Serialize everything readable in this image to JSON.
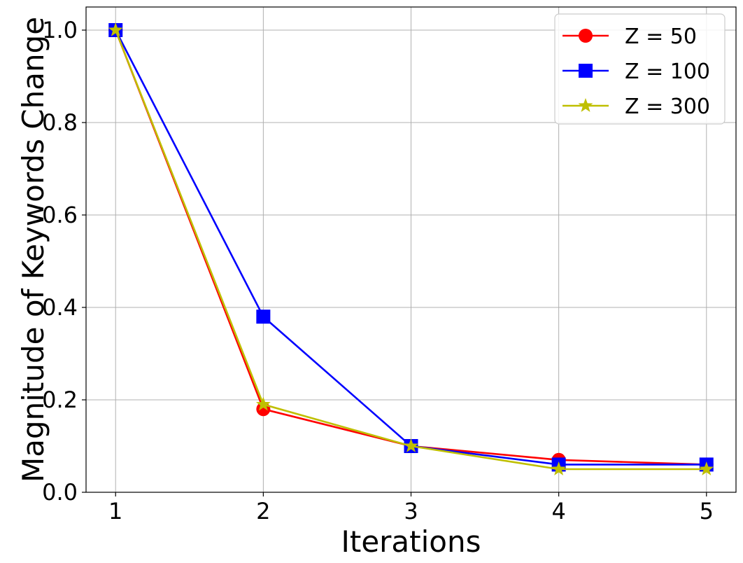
{
  "chart_data": {
    "type": "line",
    "title": "",
    "xlabel": "Iterations",
    "ylabel": "Magnitude of Keywords Change",
    "x": [
      1,
      2,
      3,
      4,
      5
    ],
    "x_ticks": [
      "1",
      "2",
      "3",
      "4",
      "5"
    ],
    "y_ticks": [
      "0.0",
      "0.2",
      "0.4",
      "0.6",
      "0.8",
      "1.0"
    ],
    "xlim": [
      0.8,
      5.2
    ],
    "ylim": [
      0.0,
      1.05
    ],
    "grid": true,
    "legend_position": "top-right",
    "series": [
      {
        "name": "Z = 50",
        "color": "#ff0000",
        "marker": "circle",
        "values": [
          1.0,
          0.18,
          0.1,
          0.07,
          0.06
        ]
      },
      {
        "name": "Z = 100",
        "color": "#0000ff",
        "marker": "square",
        "values": [
          1.0,
          0.38,
          0.1,
          0.06,
          0.06
        ]
      },
      {
        "name": "Z = 300",
        "color": "#bfbf00",
        "marker": "star",
        "values": [
          1.0,
          0.19,
          0.1,
          0.05,
          0.05
        ]
      }
    ]
  }
}
